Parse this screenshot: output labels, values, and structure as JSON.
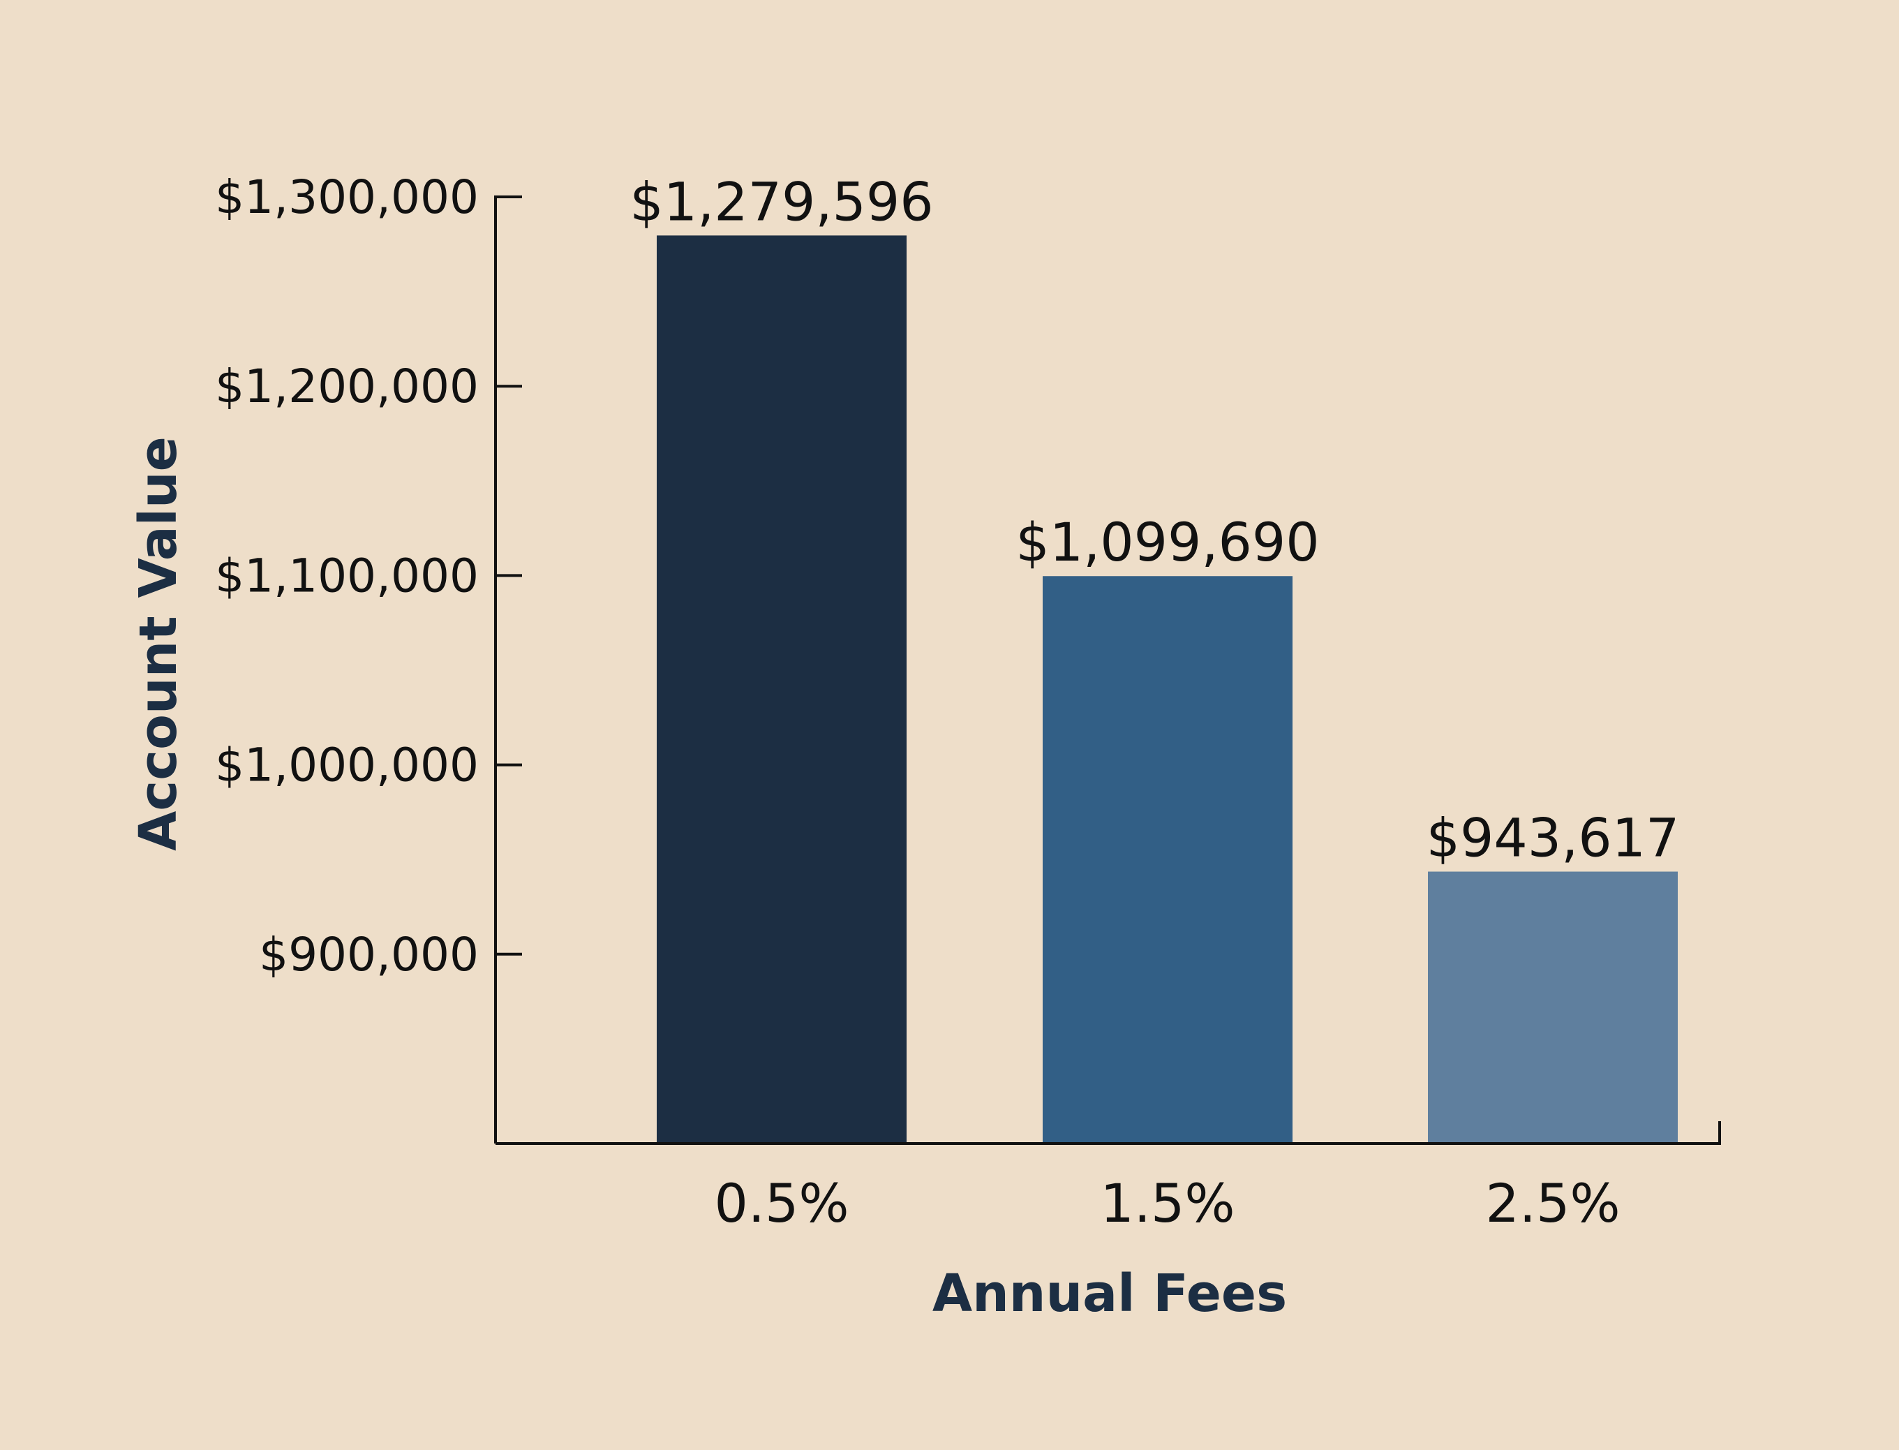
{
  "chart_data": {
    "type": "bar",
    "title": "",
    "xlabel": "Annual Fees",
    "ylabel": "Account Value",
    "categories": [
      "0.5%",
      "1.5%",
      "2.5%"
    ],
    "values": [
      1279596,
      1099690,
      943617
    ],
    "value_labels": [
      "$1,279,596",
      "$1,099,690",
      "$943,617"
    ],
    "bar_colors": [
      "#1C2E43",
      "#325F86",
      "#5F7F9E"
    ],
    "ylim": [
      800000,
      1300000
    ],
    "y_ticks": [
      900000,
      1000000,
      1100000,
      1200000,
      1300000
    ],
    "y_tick_labels": [
      "$900,000",
      "$1,000,000",
      "$1,100,000",
      "$1,200,000",
      "$1,300,000"
    ],
    "grid": false,
    "legend": "none",
    "background": "#EEDEC9"
  }
}
